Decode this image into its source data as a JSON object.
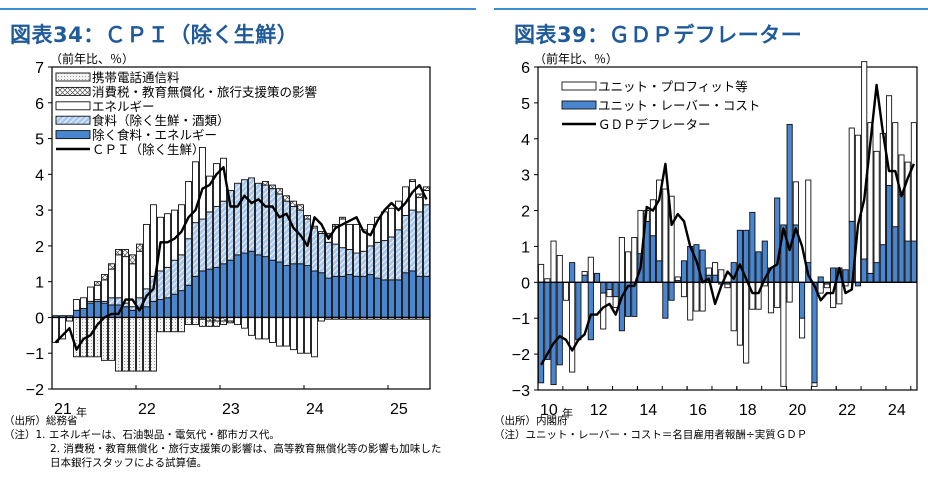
{
  "left": {
    "title": "図表34：ＣＰＩ（除く生鮮）",
    "unit_label": "（前年比、％）",
    "source": "（出所）総務省",
    "notes": [
      "（注）1. エネルギーは、石油製品・電気代・都市ガス代。",
      "2. 消費税・教育無償化・旅行支援策の影響は、高等教育無償化等の影響も加味した",
      "日本銀行スタッフによる試算値。"
    ]
  },
  "right": {
    "title": "図表39：ＧＤＰデフレーター",
    "unit_label": "（前年比、％）",
    "source": "（出所）内閣府",
    "notes": [
      "（注）ユニット・レーバー・コスト＝名目雇用者報酬÷実質ＧＤＰ"
    ]
  },
  "colors": {
    "title": "#1f5a9a",
    "rule": "#3d8fd1",
    "core_blue": "#4a86d0",
    "food_hatch": "#a9c8ef",
    "dots": "#888888"
  },
  "chart_data": [
    {
      "type": "bar",
      "stacked": true,
      "title": "図表34：ＣＰＩ（除く生鮮）",
      "ylabel": "（前年比、％）",
      "xlabel": "",
      "ylim": [
        -2,
        7
      ],
      "yticks": [
        "-2",
        "-1",
        "0",
        "1",
        "2",
        "3",
        "4",
        "5",
        "6",
        "7"
      ],
      "xticks": [
        {
          "label": "21",
          "suffix": "年",
          "index": 0
        },
        {
          "label": "22",
          "index": 12
        },
        {
          "label": "23",
          "index": 24
        },
        {
          "label": "24",
          "index": 36
        },
        {
          "label": "25",
          "index": 48
        }
      ],
      "frequency": "monthly",
      "start": "2021-01",
      "legend_position": "top-left",
      "series": [
        {
          "name": "携帯電話通信料",
          "style": "dots",
          "values": [
            0,
            0,
            0,
            -1.1,
            -1.1,
            -1.1,
            -1.1,
            -1.2,
            -1.2,
            -1.5,
            -1.5,
            -1.5,
            -1.5,
            -1.5,
            -1.5,
            -0.4,
            -0.4,
            -0.4,
            -0.4,
            -0.2,
            -0.2,
            -0.2,
            -0.15,
            -0.15,
            -0.1,
            0,
            0,
            0,
            0,
            0,
            0,
            0,
            0,
            0,
            0,
            0,
            0,
            0,
            0,
            -0.05,
            -0.05,
            -0.05,
            -0.05,
            -0.05,
            -0.05,
            -0.05,
            -0.05,
            -0.05,
            -0.05,
            -0.05,
            -0.05,
            -0.05,
            -0.05,
            -0.05
          ]
        },
        {
          "name": "消費税・教育無償化・旅行支援策の影響",
          "style": "cross",
          "values": [
            0,
            0,
            0,
            0,
            0,
            0,
            0.1,
            0.15,
            0.15,
            0.15,
            0.2,
            0.25,
            0.2,
            0,
            0,
            0,
            0,
            0,
            0,
            0,
            0,
            -0.05,
            -0.1,
            -0.1,
            -0.1,
            -0.05,
            0,
            0,
            0,
            0,
            0.1,
            0.1,
            0.15,
            0.15,
            0.15,
            0.15,
            0.1,
            0.05,
            0.05,
            0.05,
            0.05,
            0.05,
            0,
            0,
            0,
            0,
            0,
            0,
            0,
            0,
            0,
            0.05,
            0.1,
            0.1
          ]
        },
        {
          "name": "エネルギー",
          "style": "white",
          "values": [
            -0.7,
            -0.6,
            -0.1,
            0.3,
            0.3,
            0.4,
            0.4,
            0.6,
            0.8,
            1.2,
            1.3,
            1.2,
            1.3,
            1.8,
            2.0,
            1.5,
            1.5,
            1.4,
            1.4,
            1.6,
            1.7,
            2.0,
            1.0,
            1.2,
            1.2,
            -0.1,
            -0.2,
            -0.3,
            -0.5,
            -0.6,
            -0.6,
            -0.7,
            -0.8,
            -0.8,
            -0.9,
            -1.0,
            -1.0,
            -1.1,
            -0.1,
            0.2,
            0.5,
            0.8,
            0.7,
            0.8,
            0.6,
            0.6,
            0.7,
            0.8,
            0.8,
            0.8,
            0.8,
            0.8,
            0.4,
            0.4
          ]
        },
        {
          "name": "食料（除く生鮮・酒類）",
          "style": "hatch",
          "values": [
            0,
            0,
            0,
            0,
            0,
            0.05,
            0.05,
            0.05,
            0.2,
            0.2,
            0.1,
            0.1,
            0.3,
            0.5,
            0.7,
            0.8,
            0.85,
            0.95,
            1.0,
            1.3,
            1.5,
            1.45,
            1.6,
            1.7,
            1.75,
            1.95,
            2.0,
            2.05,
            2.05,
            2.0,
            2.0,
            2.0,
            1.9,
            1.8,
            1.6,
            1.5,
            1.3,
            1.2,
            1.1,
            1.0,
            0.9,
            0.8,
            0.7,
            0.65,
            0.7,
            0.8,
            1.0,
            1.1,
            1.2,
            1.4,
            1.6,
            1.7,
            1.8,
            2.0
          ]
        },
        {
          "name": "除く食料・エネルギー",
          "style": "solid",
          "values": [
            0.05,
            0.05,
            0.05,
            0.2,
            0.25,
            0.4,
            0.45,
            0.4,
            0.35,
            0.35,
            0.3,
            0.2,
            0.25,
            0.3,
            0.45,
            0.5,
            0.55,
            0.65,
            0.75,
            0.9,
            1.15,
            1.3,
            1.35,
            1.4,
            1.5,
            1.6,
            1.75,
            1.8,
            1.85,
            1.75,
            1.7,
            1.6,
            1.55,
            1.45,
            1.5,
            1.5,
            1.45,
            1.3,
            1.25,
            1.1,
            1.15,
            1.15,
            1.2,
            1.15,
            1.15,
            1.2,
            1.1,
            1.05,
            1.05,
            1.05,
            1.25,
            1.3,
            1.15,
            1.15
          ]
        },
        {
          "name": "ＣＰＩ（除く生鮮）",
          "style": "line",
          "values": [
            -0.7,
            -0.5,
            -0.3,
            -0.9,
            -0.6,
            -0.5,
            -0.2,
            0.0,
            0.1,
            0.1,
            0.5,
            0.5,
            0.2,
            0.6,
            0.8,
            2.1,
            2.1,
            2.2,
            2.4,
            2.8,
            3.0,
            3.6,
            3.7,
            4.0,
            4.2,
            3.1,
            3.1,
            3.4,
            3.2,
            3.3,
            3.1,
            3.1,
            2.8,
            2.9,
            2.5,
            2.3,
            2.0,
            2.8,
            2.6,
            2.2,
            2.5,
            2.6,
            2.7,
            2.8,
            2.4,
            2.3,
            2.7,
            3.0,
            3.2,
            3.0,
            3.2,
            3.5,
            3.7,
            3.3
          ]
        }
      ]
    },
    {
      "type": "bar",
      "stacked": true,
      "title": "図表39：ＧＤＰデフレーター",
      "ylabel": "（前年比、％）",
      "xlabel": "",
      "ylim": [
        -3,
        6
      ],
      "yticks": [
        "-3",
        "-2",
        "-1",
        "0",
        "1",
        "2",
        "3",
        "4",
        "5",
        "6"
      ],
      "xticks": [
        {
          "label": "10",
          "suffix": "年",
          "index": 0
        },
        {
          "label": "12",
          "index": 8
        },
        {
          "label": "14",
          "index": 16
        },
        {
          "label": "16",
          "index": 24
        },
        {
          "label": "18",
          "index": 32
        },
        {
          "label": "20",
          "index": 40
        },
        {
          "label": "22",
          "index": 48
        },
        {
          "label": "24",
          "index": 56
        }
      ],
      "frequency": "quarterly",
      "start": "2010Q1",
      "legend_position": "top-left",
      "series": [
        {
          "name": "ユニット・プロフィット等",
          "style": "white",
          "values": [
            0.5,
            0.1,
            1.15,
            0.75,
            -0.5,
            -2.5,
            0,
            0.1,
            0.7,
            0,
            -1.0,
            -0.2,
            -0.3,
            1.25,
            0.85,
            1.25,
            1.2,
            0.3,
            1.0,
            2.25,
            2.6,
            2.4,
            0.1,
            -0.4,
            -1.05,
            -0.8,
            -0.8,
            0.2,
            0.35,
            0.35,
            -0.1,
            -1.35,
            -1.75,
            -2.25,
            -0.75,
            -0.75,
            -0.1,
            -0.85,
            -0.7,
            -2.9,
            -0.55,
            1.2,
            -0.55,
            2.3,
            -0.1,
            -0.3,
            -0.1,
            -0.7,
            -0.6,
            -0.1,
            2.6,
            4.1,
            5.5,
            4.2,
            3.1,
            3.1,
            2.5,
            2.9,
            1.1,
            2.2,
            3.3
          ]
        },
        {
          "name": "ユニット・レーバー・コスト",
          "style": "solid",
          "values": [
            -2.8,
            -2.15,
            -2.85,
            -2.3,
            0,
            0.55,
            -1.6,
            0.2,
            -1.6,
            0.25,
            -0.3,
            -0.2,
            -0.4,
            -1.35,
            -0.95,
            -0.95,
            0.8,
            1.7,
            1.3,
            0.6,
            -1.0,
            -0.5,
            0.05,
            0.6,
            1.0,
            1.05,
            0.9,
            0.2,
            0.2,
            -0.05,
            -0.05,
            0.55,
            1.45,
            1.45,
            1.95,
            0.85,
            1.15,
            0.4,
            2.35,
            1.6,
            4.4,
            1.6,
            -1.0,
            0.55,
            -2.8,
            0.15,
            -0.05,
            0.4,
            0.4,
            0.35,
            1.7,
            -0.1,
            0.65,
            0.25,
            0.55,
            1.05,
            2.7,
            1.55,
            2.45,
            1.15,
            1.15
          ]
        },
        {
          "name": "ＧＤＰデフレーター",
          "style": "line",
          "values": [
            -2.3,
            -2.0,
            -1.7,
            -1.5,
            -1.6,
            -1.9,
            -1.6,
            -1.45,
            -0.9,
            -0.9,
            -0.7,
            -0.6,
            -0.9,
            -0.4,
            -0.1,
            -0.1,
            0.4,
            2.1,
            2.0,
            2.3,
            3.3,
            1.6,
            1.9,
            1.7,
            1.0,
            0.6,
            0.0,
            0.1,
            -0.6,
            -0.1,
            0.3,
            0.1,
            0.5,
            0.1,
            -0.3,
            -0.3,
            0.1,
            0.4,
            0.5,
            1.5,
            0.9,
            1.5,
            1.0,
            0.2,
            -0.1,
            -0.5,
            -0.3,
            -0.3,
            0.4,
            -0.3,
            -0.2,
            1.6,
            2.3,
            3.9,
            5.5,
            4.2,
            3.1,
            3.1,
            2.4,
            2.9,
            3.3
          ]
        }
      ]
    }
  ]
}
